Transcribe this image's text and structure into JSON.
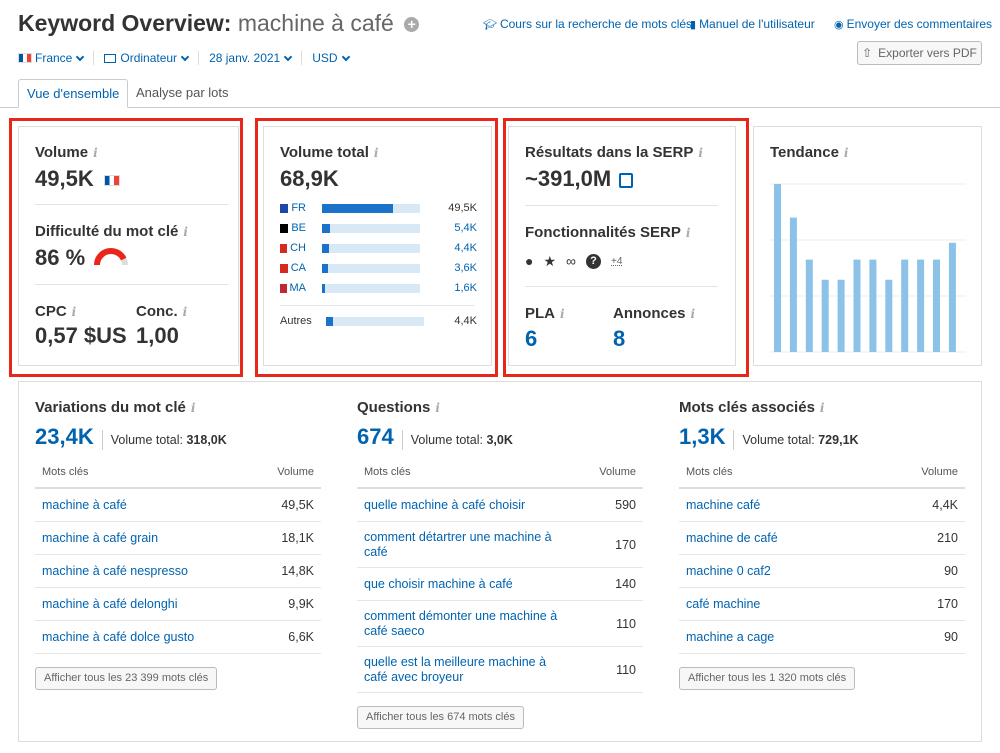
{
  "header": {
    "title": "Keyword Overview:",
    "keyword": "machine à café",
    "links": {
      "course": "Cours sur la recherche de mots clés",
      "manual": "Manuel de l'utilisateur",
      "feedback": "Envoyer des commentaires"
    },
    "export_label": "Exporter vers PDF"
  },
  "filters": {
    "country": "France",
    "device": "Ordinateur",
    "date": "28 janv. 2021",
    "currency": "USD"
  },
  "tabs": {
    "overview": "Vue d'ensemble",
    "batch": "Analyse par lots"
  },
  "volume": {
    "label": "Volume",
    "value": "49,5K",
    "difficulty_label": "Difficulté du mot clé",
    "difficulty_value": "86 %",
    "difficulty_fraction": 0.86,
    "cpc_label": "CPC",
    "cpc_value": "0,57 $US",
    "conc_label": "Conc.",
    "conc_value": "1,00"
  },
  "total_volume": {
    "label": "Volume total",
    "value": "68,9K",
    "countries": [
      {
        "code": "FR",
        "value": "49,5K",
        "fill": 0.72,
        "flag": "#1a4aa6"
      },
      {
        "code": "BE",
        "value": "5,4K",
        "fill": 0.08,
        "flag": "#000000"
      },
      {
        "code": "CH",
        "value": "4,4K",
        "fill": 0.07,
        "flag": "#d52b1e"
      },
      {
        "code": "CA",
        "value": "3,6K",
        "fill": 0.06,
        "flag": "#d52b1e"
      },
      {
        "code": "MA",
        "value": "1,6K",
        "fill": 0.03,
        "flag": "#c1272d"
      }
    ],
    "others_label": "Autres",
    "others_value": "4,4K",
    "others_fill": 0.07
  },
  "serp": {
    "results_label": "Résultats dans la SERP",
    "results_value": "~391,0M",
    "features_label": "Fonctionnalités SERP",
    "features_more": "+4",
    "icons": [
      "location-icon",
      "star-icon",
      "link-icon",
      "question-icon"
    ],
    "pla_label": "PLA",
    "pla_value": "6",
    "ads_label": "Annonces",
    "ads_value": "8"
  },
  "trend": {
    "label": "Tendance",
    "values": [
      1.0,
      0.8,
      0.55,
      0.43,
      0.43,
      0.55,
      0.55,
      0.43,
      0.55,
      0.55,
      0.55,
      0.65
    ]
  },
  "variations": {
    "title": "Variations du mot clé",
    "count": "23,4K",
    "volume_total_label": "Volume total:",
    "volume_total_value": "318,0K",
    "col_kw": "Mots clés",
    "col_vol": "Volume",
    "rows": [
      {
        "kw": "machine à café",
        "vol": "49,5K"
      },
      {
        "kw": "machine à café grain",
        "vol": "18,1K"
      },
      {
        "kw": "machine à café nespresso",
        "vol": "14,8K"
      },
      {
        "kw": "machine à café delonghi",
        "vol": "9,9K"
      },
      {
        "kw": "machine à café dolce gusto",
        "vol": "6,6K"
      }
    ],
    "button": "Afficher tous les 23 399 mots clés"
  },
  "questions": {
    "title": "Questions",
    "count": "674",
    "volume_total_label": "Volume total:",
    "volume_total_value": "3,0K",
    "col_kw": "Mots clés",
    "col_vol": "Volume",
    "rows": [
      {
        "kw": "quelle machine à café choisir",
        "vol": "590"
      },
      {
        "kw": "comment détartrer une machine à café",
        "vol": "170"
      },
      {
        "kw": "que choisir machine à café",
        "vol": "140"
      },
      {
        "kw": "comment démonter une machine à café saeco",
        "vol": "110"
      },
      {
        "kw": "quelle est la meilleure machine à café avec broyeur",
        "vol": "110"
      }
    ],
    "button": "Afficher tous les 674 mots clés"
  },
  "related": {
    "title": "Mots clés associés",
    "count": "1,3K",
    "volume_total_label": "Volume total:",
    "volume_total_value": "729,1K",
    "col_kw": "Mots clés",
    "col_vol": "Volume",
    "rows": [
      {
        "kw": "machine café",
        "vol": "4,4K"
      },
      {
        "kw": "machine de café",
        "vol": "210"
      },
      {
        "kw": "machine 0 caf2",
        "vol": "90"
      },
      {
        "kw": "café machine",
        "vol": "170"
      },
      {
        "kw": "machine a cage",
        "vol": "90"
      }
    ],
    "button": "Afficher tous les 1 320 mots clés"
  }
}
